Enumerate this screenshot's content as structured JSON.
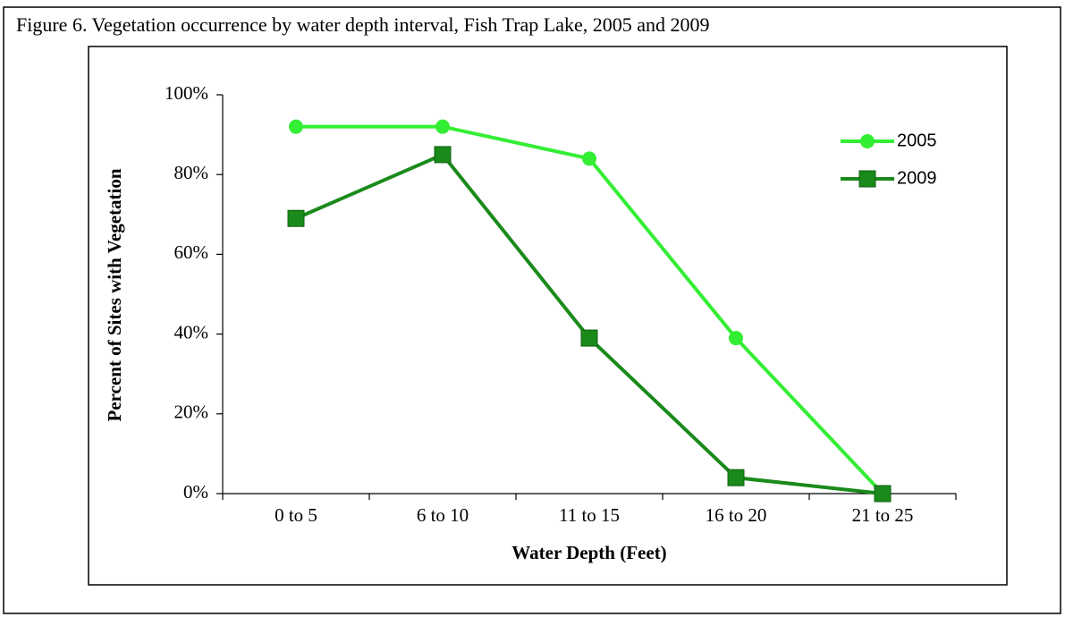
{
  "chart_data": {
    "type": "line",
    "title": "Figure 6. Vegetation occurrence by water depth interval, Fish Trap Lake, 2005 and 2009",
    "x_label": "Water Depth (Feet)",
    "y_label": "Percent of Sites with Vegetation",
    "categories": [
      "0 to 5",
      "6 to 10",
      "11 to 15",
      "16 to 20",
      "21 to 25"
    ],
    "series": [
      {
        "name": "2005",
        "color": "#33ee33",
        "marker": "circle",
        "values": [
          92,
          92,
          84,
          39,
          0
        ]
      },
      {
        "name": "2009",
        "color": "#1a8a1a",
        "marker": "square",
        "values": [
          69,
          85,
          39,
          4,
          0
        ]
      }
    ],
    "ylim": [
      0,
      100
    ],
    "yticks": [
      {
        "value": 0,
        "label": "0%"
      },
      {
        "value": 20,
        "label": "20%"
      },
      {
        "value": 40,
        "label": "40%"
      },
      {
        "value": 60,
        "label": "60%"
      },
      {
        "value": 80,
        "label": "80%"
      },
      {
        "value": 100,
        "label": "100%"
      }
    ],
    "legend": "upper right"
  }
}
